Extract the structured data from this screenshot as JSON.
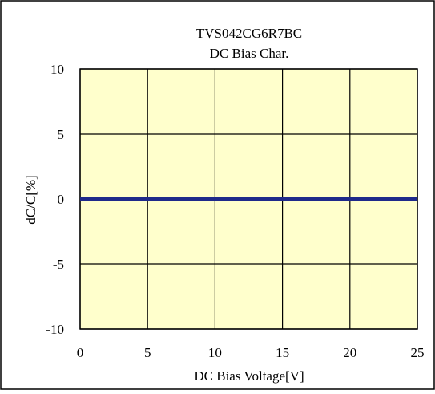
{
  "chart_data": {
    "type": "line",
    "title": "TVS042CG6R7BC",
    "subtitle": "DC Bias Char.",
    "xlabel": "DC Bias Voltage[V]",
    "ylabel": "dC/C[%]",
    "xlim": [
      0,
      25
    ],
    "ylim": [
      -10,
      10
    ],
    "x_ticks": [
      0,
      5,
      10,
      15,
      20,
      25
    ],
    "y_ticks": [
      10,
      5,
      0,
      -5,
      -10
    ],
    "x_tick_labels": [
      "0",
      "5",
      "10",
      "15",
      "20",
      "25"
    ],
    "y_tick_labels": [
      "10",
      "5",
      "0",
      "-5",
      "-10"
    ],
    "grid": true,
    "legend": "none",
    "series": [
      {
        "x": [
          0,
          25
        ],
        "y": [
          0,
          0
        ],
        "color": "#1f2a8a"
      }
    ],
    "colors": {
      "plot_background": "#ffffcc",
      "grid": "#000000",
      "line": "#1f2a8a",
      "frame": "#000000"
    }
  }
}
